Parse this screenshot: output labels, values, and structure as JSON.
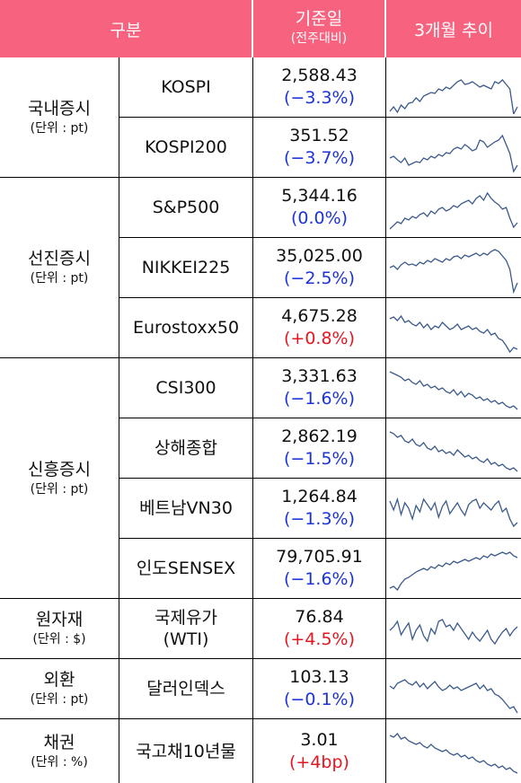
{
  "header": {
    "col1": "구분",
    "col2_line1": "기준일",
    "col2_line2": "(전주대비)",
    "col3": "3개월 추이"
  },
  "groups": [
    {
      "name": "국내증시",
      "unit": "(단위 : pt)"
    },
    {
      "name": "선진증시",
      "unit": "(단위 : pt)"
    },
    {
      "name": "신흥증시",
      "unit": "(단위 : pt)"
    },
    {
      "name": "원자재",
      "unit": "(단위 : $)"
    },
    {
      "name": "외환",
      "unit": "(단위 : pt)"
    },
    {
      "name": "채권",
      "unit": "(단위 : %)"
    }
  ],
  "rows": [
    {
      "name": "KOSPI",
      "value": "2,588.43",
      "change": "(−3.3%)",
      "dir": "neg",
      "trend": [
        55,
        50,
        56,
        48,
        52,
        46,
        45,
        40,
        44,
        38,
        36,
        34,
        35,
        30,
        32,
        28,
        30,
        26,
        22,
        20,
        25,
        24,
        22,
        25,
        28,
        26,
        28,
        30,
        22,
        24,
        20,
        25,
        30,
        58,
        50
      ]
    },
    {
      "name": "KOSPI200",
      "value": "351.52",
      "change": "(−3.7%)",
      "dir": "neg",
      "trend": [
        40,
        38,
        42,
        45,
        40,
        48,
        46,
        44,
        45,
        40,
        42,
        38,
        40,
        36,
        38,
        34,
        35,
        30,
        28,
        30,
        25,
        28,
        32,
        30,
        20,
        22,
        28,
        25,
        22,
        20,
        15,
        25,
        35,
        55,
        48
      ]
    },
    {
      "name": "S&P500",
      "value": "5,344.16",
      "change": "(0.0%)",
      "dir": "zero",
      "trend": [
        52,
        48,
        44,
        46,
        40,
        42,
        38,
        40,
        36,
        34,
        38,
        32,
        35,
        30,
        28,
        32,
        30,
        26,
        28,
        24,
        22,
        20,
        24,
        18,
        15,
        20,
        12,
        18,
        22,
        25,
        30,
        28,
        40,
        50,
        45
      ]
    },
    {
      "name": "NIKKEI225",
      "value": "35,025.00",
      "change": "(−2.5%)",
      "dir": "neg",
      "trend": [
        28,
        26,
        30,
        25,
        22,
        25,
        24,
        26,
        22,
        24,
        20,
        22,
        18,
        20,
        22,
        18,
        20,
        16,
        15,
        18,
        14,
        16,
        14,
        12,
        15,
        12,
        14,
        10,
        8,
        10,
        15,
        20,
        30,
        55,
        45
      ]
    },
    {
      "name": "Eurostoxx50",
      "value": "4,675.28",
      "change": "(+0.8%)",
      "dir": "pos",
      "trend": [
        18,
        16,
        20,
        15,
        22,
        20,
        24,
        26,
        22,
        28,
        24,
        30,
        26,
        28,
        22,
        26,
        30,
        28,
        24,
        30,
        28,
        26,
        30,
        28,
        32,
        34,
        30,
        36,
        34,
        40,
        42,
        48,
        55,
        50,
        52
      ]
    },
    {
      "name": "CSI300",
      "value": "3,331.63",
      "change": "(−1.6%)",
      "dir": "neg",
      "trend": [
        10,
        12,
        14,
        16,
        20,
        18,
        22,
        24,
        20,
        26,
        24,
        28,
        26,
        30,
        28,
        32,
        34,
        30,
        36,
        32,
        38,
        34,
        36,
        40,
        38,
        42,
        40,
        44,
        42,
        46,
        44,
        48,
        50,
        48,
        52
      ]
    },
    {
      "name": "상해종합",
      "value": "2,862.19",
      "change": "(−1.5%)",
      "dir": "neg",
      "trend": [
        10,
        12,
        16,
        14,
        20,
        22,
        18,
        24,
        26,
        22,
        28,
        30,
        26,
        32,
        30,
        34,
        32,
        36,
        30,
        34,
        38,
        36,
        40,
        38,
        42,
        44,
        40,
        46,
        44,
        48,
        46,
        50,
        52,
        50,
        54
      ]
    },
    {
      "name": "베트남VN30",
      "value": "1,264.84",
      "change": "(−1.3%)",
      "dir": "neg",
      "trend": [
        20,
        30,
        18,
        35,
        22,
        28,
        40,
        25,
        32,
        18,
        24,
        30,
        22,
        38,
        26,
        20,
        34,
        28,
        22,
        30,
        36,
        24,
        20,
        18,
        28,
        22,
        26,
        30,
        24,
        20,
        32,
        28,
        40,
        48,
        44
      ]
    },
    {
      "name": "인도SENSEX",
      "value": "79,705.91",
      "change": "(−1.6%)",
      "dir": "neg",
      "trend": [
        50,
        48,
        52,
        45,
        40,
        38,
        35,
        32,
        30,
        28,
        30,
        26,
        28,
        24,
        26,
        22,
        24,
        20,
        22,
        20,
        18,
        20,
        18,
        16,
        18,
        14,
        16,
        12,
        14,
        12,
        10,
        12,
        10,
        14,
        16
      ]
    },
    {
      "name": "국제유가\n(WTI)",
      "value": "76.84",
      "change": "(+4.5%)",
      "dir": "pos",
      "trend": [
        30,
        26,
        20,
        35,
        28,
        22,
        40,
        30,
        24,
        36,
        42,
        28,
        34,
        20,
        18,
        26,
        24,
        30,
        22,
        28,
        34,
        40,
        32,
        38,
        42,
        36,
        30,
        40,
        45,
        38,
        32,
        28,
        36,
        30,
        26
      ]
    },
    {
      "name": "달러인덱스",
      "value": "103.13",
      "change": "(−0.1%)",
      "dir": "neg",
      "trend": [
        25,
        28,
        22,
        20,
        18,
        22,
        24,
        20,
        26,
        22,
        28,
        24,
        20,
        26,
        30,
        28,
        24,
        28,
        26,
        30,
        28,
        26,
        24,
        22,
        28,
        24,
        30,
        28,
        34,
        36,
        40,
        45,
        50,
        48,
        55
      ]
    },
    {
      "name": "국고채10년물",
      "value": "3.01",
      "change": "(+4bp)",
      "dir": "pos",
      "trend": [
        10,
        12,
        8,
        14,
        12,
        16,
        18,
        20,
        18,
        22,
        24,
        20,
        24,
        26,
        28,
        26,
        30,
        32,
        30,
        34,
        32,
        36,
        34,
        38,
        40,
        38,
        42,
        44,
        42,
        46,
        44,
        48,
        46,
        50,
        52
      ]
    }
  ],
  "colors": {
    "header": "#f7637f",
    "negative": "#1c33d8",
    "positive": "#e3171f",
    "sparkline": "#3b5a8c"
  }
}
